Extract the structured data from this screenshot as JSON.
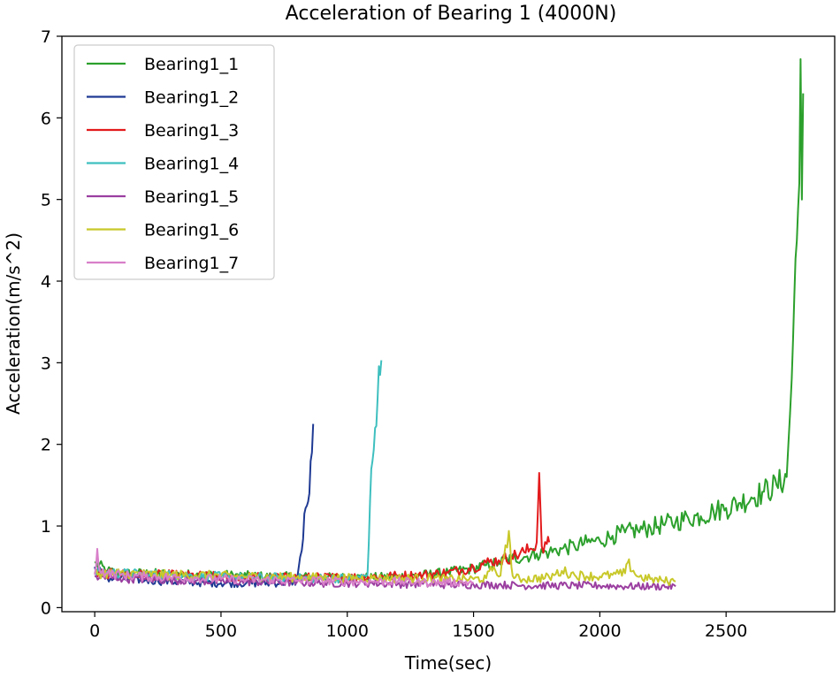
{
  "chart_data": {
    "type": "line",
    "title": "Acceleration of Bearing 1 (4000N)",
    "xlabel": "Time(sec)",
    "ylabel": "Acceleration(m/s^2)",
    "xlim": [
      -130,
      2930
    ],
    "ylim": [
      -0.05,
      7.0
    ],
    "xticks": [
      0,
      500,
      1000,
      1500,
      2000,
      2500
    ],
    "yticks": [
      0,
      1,
      2,
      3,
      4,
      5,
      6,
      7
    ],
    "grid": false,
    "legend_position": "top-left",
    "series": [
      {
        "name": "Bearing1_1",
        "color": "#2ca02c",
        "x": [
          0,
          50,
          100,
          200,
          300,
          400,
          500,
          600,
          700,
          800,
          900,
          1000,
          1100,
          1200,
          1300,
          1400,
          1500,
          1550,
          1600,
          1650,
          1700,
          1750,
          1800,
          1850,
          1900,
          1950,
          2000,
          2050,
          2100,
          2150,
          2200,
          2250,
          2300,
          2350,
          2400,
          2450,
          2500,
          2550,
          2600,
          2650,
          2700,
          2740,
          2760,
          2770,
          2780,
          2790,
          2795,
          2800,
          2805
        ],
        "y": [
          0.55,
          0.45,
          0.42,
          0.42,
          0.41,
          0.4,
          0.4,
          0.39,
          0.38,
          0.38,
          0.37,
          0.37,
          0.37,
          0.38,
          0.4,
          0.43,
          0.48,
          0.52,
          0.55,
          0.6,
          0.62,
          0.66,
          0.68,
          0.72,
          0.75,
          0.8,
          0.82,
          0.88,
          0.92,
          0.95,
          0.98,
          1.02,
          1.05,
          1.1,
          1.12,
          1.18,
          1.22,
          1.28,
          1.35,
          1.42,
          1.5,
          1.6,
          2.8,
          3.8,
          4.5,
          5.2,
          6.72,
          5.0,
          6.3
        ]
      },
      {
        "name": "Bearing1_2",
        "color": "#1f3a93",
        "x": [
          0,
          50,
          100,
          150,
          200,
          250,
          300,
          400,
          500,
          600,
          700,
          800,
          820,
          830,
          840,
          850,
          860,
          865
        ],
        "y": [
          0.5,
          0.36,
          0.35,
          0.35,
          0.34,
          0.33,
          0.32,
          0.31,
          0.3,
          0.3,
          0.3,
          0.32,
          0.7,
          1.15,
          1.25,
          1.4,
          1.9,
          2.25
        ]
      },
      {
        "name": "Bearing1_3",
        "color": "#e31a1c",
        "x": [
          0,
          100,
          200,
          300,
          400,
          500,
          600,
          700,
          800,
          900,
          1000,
          1100,
          1200,
          1300,
          1400,
          1450,
          1500,
          1550,
          1600,
          1650,
          1700,
          1730,
          1750,
          1760,
          1770,
          1790,
          1800
        ],
        "y": [
          0.42,
          0.41,
          0.4,
          0.4,
          0.39,
          0.38,
          0.38,
          0.37,
          0.37,
          0.37,
          0.37,
          0.38,
          0.39,
          0.4,
          0.43,
          0.46,
          0.5,
          0.55,
          0.58,
          0.62,
          0.68,
          0.72,
          0.8,
          1.65,
          0.75,
          0.78,
          0.8
        ]
      },
      {
        "name": "Bearing1_4",
        "color": "#3fbfbf",
        "x": [
          0,
          100,
          200,
          300,
          400,
          500,
          600,
          700,
          800,
          900,
          1000,
          1050,
          1080,
          1090,
          1100,
          1110,
          1120,
          1130,
          1135
        ],
        "y": [
          0.44,
          0.42,
          0.41,
          0.4,
          0.39,
          0.38,
          0.37,
          0.37,
          0.36,
          0.36,
          0.36,
          0.37,
          0.4,
          1.3,
          1.8,
          2.2,
          2.55,
          2.85,
          3.03
        ]
      },
      {
        "name": "Bearing1_5",
        "color": "#9b3fa0",
        "x": [
          0,
          100,
          200,
          300,
          400,
          500,
          600,
          700,
          800,
          900,
          1000,
          1100,
          1200,
          1300,
          1400,
          1500,
          1600,
          1700,
          1800,
          1900,
          2000,
          2100,
          2200,
          2300
        ],
        "y": [
          0.38,
          0.36,
          0.35,
          0.34,
          0.33,
          0.32,
          0.32,
          0.31,
          0.31,
          0.3,
          0.3,
          0.3,
          0.29,
          0.29,
          0.28,
          0.28,
          0.28,
          0.27,
          0.27,
          0.27,
          0.27,
          0.26,
          0.26,
          0.26
        ]
      },
      {
        "name": "Bearing1_6",
        "color": "#c8c82a",
        "x": [
          0,
          100,
          200,
          300,
          400,
          500,
          600,
          700,
          800,
          900,
          1000,
          1100,
          1200,
          1300,
          1400,
          1500,
          1550,
          1580,
          1600,
          1620,
          1640,
          1650,
          1660,
          1700,
          1800,
          1850,
          1900,
          2000,
          2050,
          2100,
          2110,
          2150,
          2200,
          2250,
          2300
        ],
        "y": [
          0.42,
          0.42,
          0.41,
          0.4,
          0.4,
          0.39,
          0.38,
          0.38,
          0.37,
          0.37,
          0.36,
          0.36,
          0.36,
          0.36,
          0.35,
          0.35,
          0.36,
          0.5,
          0.38,
          0.6,
          0.94,
          0.5,
          0.36,
          0.35,
          0.37,
          0.45,
          0.4,
          0.38,
          0.4,
          0.42,
          0.55,
          0.38,
          0.35,
          0.33,
          0.32
        ]
      },
      {
        "name": "Bearing1_7",
        "color": "#d87fc9",
        "x": [
          0,
          10,
          20,
          50,
          100,
          200,
          300,
          400,
          500,
          600,
          700,
          800,
          900,
          1000,
          1100,
          1200,
          1300,
          1400,
          1500
        ],
        "y": [
          0.4,
          0.72,
          0.45,
          0.42,
          0.4,
          0.38,
          0.37,
          0.36,
          0.35,
          0.34,
          0.34,
          0.33,
          0.33,
          0.32,
          0.32,
          0.32,
          0.31,
          0.31,
          0.31
        ]
      }
    ]
  }
}
